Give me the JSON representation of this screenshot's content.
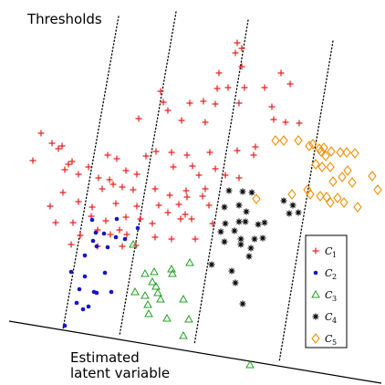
{
  "labels": {
    "thresholds": "Thresholds",
    "latent_line1": "Estimated",
    "latent_line2": "latent variable"
  },
  "legend": [
    {
      "letter": "C",
      "sub": "1",
      "marker": "plus",
      "color": "#e8201e"
    },
    {
      "letter": "C",
      "sub": "2",
      "marker": "dot",
      "color": "#1414c8"
    },
    {
      "letter": "C",
      "sub": "3",
      "marker": "triangle",
      "color": "#22a022"
    },
    {
      "letter": "C",
      "sub": "4",
      "marker": "asterisk",
      "color": "#000000"
    },
    {
      "letter": "C",
      "sub": "5",
      "marker": "diamond",
      "color": "#f0900a"
    }
  ]
}
